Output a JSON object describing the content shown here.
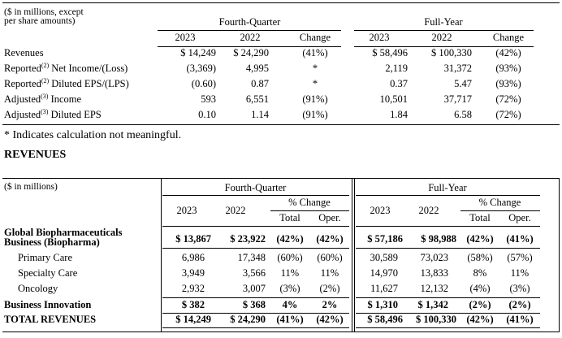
{
  "table1": {
    "caption_line1": "($ in millions, except",
    "caption_line2": "per share amounts)",
    "group_q": "Fourth-Quarter",
    "group_fy": "Full-Year",
    "col_headers": [
      "2023",
      "2022",
      "Change",
      "2023",
      "2022",
      "Change"
    ],
    "rows": [
      {
        "label": "Revenues",
        "sup": "",
        "suffix": "",
        "values": [
          "$ 14,249",
          "$ 24,290",
          "(41%)",
          "$ 58,496",
          "$ 100,330",
          "(42%)"
        ]
      },
      {
        "label": "Reported",
        "sup": "(2)",
        "suffix": " Net Income/(Loss)",
        "values": [
          "(3,369)",
          "4,995",
          "*",
          "2,119",
          "31,372",
          "(93%)"
        ]
      },
      {
        "label": "Reported",
        "sup": "(2)",
        "suffix": " Diluted EPS/(LPS)",
        "values": [
          "(0.60)",
          "0.87",
          "*",
          "0.37",
          "5.47",
          "(93%)"
        ]
      },
      {
        "label": "Adjusted",
        "sup": "(3)",
        "suffix": " Income",
        "values": [
          "593",
          "6,551",
          "(91%)",
          "10,501",
          "37,717",
          "(72%)"
        ]
      },
      {
        "label": "Adjusted",
        "sup": "(3)",
        "suffix": " Diluted EPS",
        "values": [
          "0.10",
          "1.14",
          "(91%)",
          "1.84",
          "6.58",
          "(72%)"
        ]
      }
    ]
  },
  "note": "* Indicates calculation not meaningful.",
  "section_title": "REVENUES",
  "table2": {
    "caption": "($ in millions)",
    "group_q": "Fourth-Quarter",
    "group_fy": "Full-Year",
    "pct_change": "% Change",
    "year_2023": "2023",
    "year_2022": "2022",
    "total": "Total",
    "oper": "Oper.",
    "rows": [
      {
        "label_line1": "Global Biopharmaceuticals",
        "label_line2": "Business (Biopharma)",
        "bold": true,
        "values": [
          "$ 13,867",
          "$ 23,922",
          "(42%)",
          "(42%)",
          "$ 57,186",
          "$ 98,988",
          "(42%)",
          "(41%)"
        ]
      },
      {
        "label": "Primary Care",
        "bold": false,
        "values": [
          "6,986",
          "17,348",
          "(60%)",
          "(60%)",
          "30,589",
          "73,023",
          "(58%)",
          "(57%)"
        ]
      },
      {
        "label": "Specialty Care",
        "bold": false,
        "values": [
          "3,949",
          "3,566",
          "11%",
          "11%",
          "14,970",
          "13,833",
          "8%",
          "11%"
        ]
      },
      {
        "label": "Oncology",
        "bold": false,
        "values": [
          "2,932",
          "3,007",
          "(3%)",
          "(2%)",
          "11,627",
          "12,132",
          "(4%)",
          "(3%)"
        ]
      },
      {
        "label": "Business Innovation",
        "bold": true,
        "values": [
          "$ 382",
          "$ 368",
          "4%",
          "2%",
          "$ 1,310",
          "$ 1,342",
          "(2%)",
          "(2%)"
        ]
      },
      {
        "label": "TOTAL REVENUES",
        "bold": true,
        "values": [
          "$ 14,249",
          "$ 24,290",
          "(41%)",
          "(42%)",
          "$ 58,496",
          "$ 100,330",
          "(42%)",
          "(41%)"
        ]
      }
    ]
  }
}
